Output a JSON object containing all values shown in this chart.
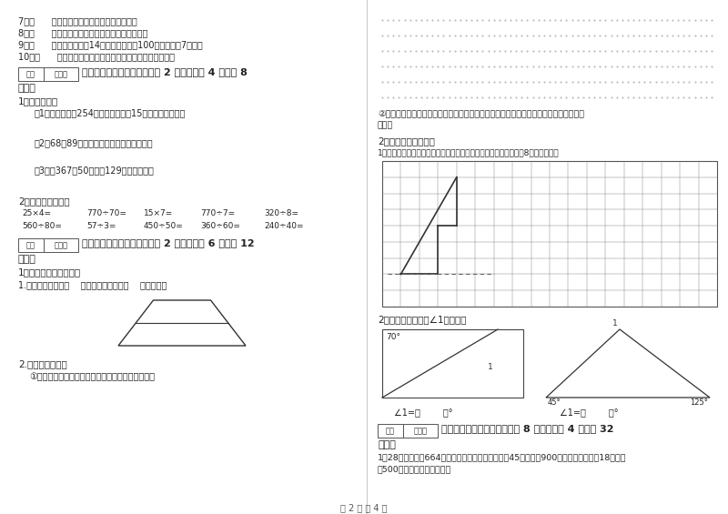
{
  "bg_color": "#ffffff",
  "footer_text": "第 2 页 共 4 页",
  "footer_color": "#555555",
  "left_items7": "7．（      ）一个三角形至少有两个角是锐角。",
  "left_items8": "8．（      ）一个数的因数一定小于这个数的倍数。",
  "left_items9": "9．（      ）一个桶可以盛14升油，现在要装100升油，需要7个桶。",
  "left_items10": "10．（      ）两条直线相交成直角时，这两条直线互相垂直。",
  "sec4_title": "四、看清题目，细心计算（共 2 小题，每题 4 分，共 8",
  "sec4_cont": "分）。",
  "s4_1": "1、列式计算。",
  "s4_1_1": "（1）已知甲数是254，乙数是甲数的15倍，乙数是多少？",
  "s4_1_2": "（2）68与89的和乘以他们的差，积是多少？",
  "s4_1_3": "（3）比367的50倍，多129的数是多少？",
  "s4_2": "2、直接写出得数。",
  "calc_row1": [
    "25×4=",
    "770÷70=",
    "15×7=",
    "770÷7=",
    "320÷8="
  ],
  "calc_row2": [
    "560÷80=",
    "57÷3=",
    "450÷50=",
    "360÷60=",
    "240÷40="
  ],
  "sec5_title": "五、认真思考，综合能力（共 2 小题，每题 6 分，共 12",
  "sec5_cont": "分）。",
  "s5_1": "1、动脑动手，我擅长！",
  "s5_1_1": "1.一数下图中，有（    ）个平行四边形，（    ）个梯形。",
  "s5_2": "2.按要求画一画。",
  "s5_2_1": "①在点子图上画出一个等腰锐角三角形和一个梯形。",
  "r_line2": "②给锐角三角形画对称轴，在梯形里画一条线段，把它分割成：一个三角型和一个平行四",
  "r_line2b": "边形。",
  "r_sec2": "2、画一画，算一算。",
  "r_sec2_1": "1、画出这个轴对称图形的另一半，再画出这个轴对称图形向右平移8格后的图形。",
  "r_angle_title": "2、看图写出各图中∠1的度数。",
  "angle1_label": "70°",
  "angle1_num": "1",
  "angle2_45": "45°",
  "angle2_125": "125°",
  "angle2_num": "1",
  "angle_answer": "∠1=（        ）°",
  "sec6_title": "六、应用知识，解决问题（共 8 小题，每题 4 分，共 32",
  "sec6_cont": "分）。",
  "s6_1a": "1、28名老师带着664名同学去春游，每辆大车可坐45人，租金900元，每辆小车可坐18人，租",
  "s6_1b": "金500元，怎样租车最省钱？",
  "score_label1": "得分",
  "score_label2": "评卷人"
}
